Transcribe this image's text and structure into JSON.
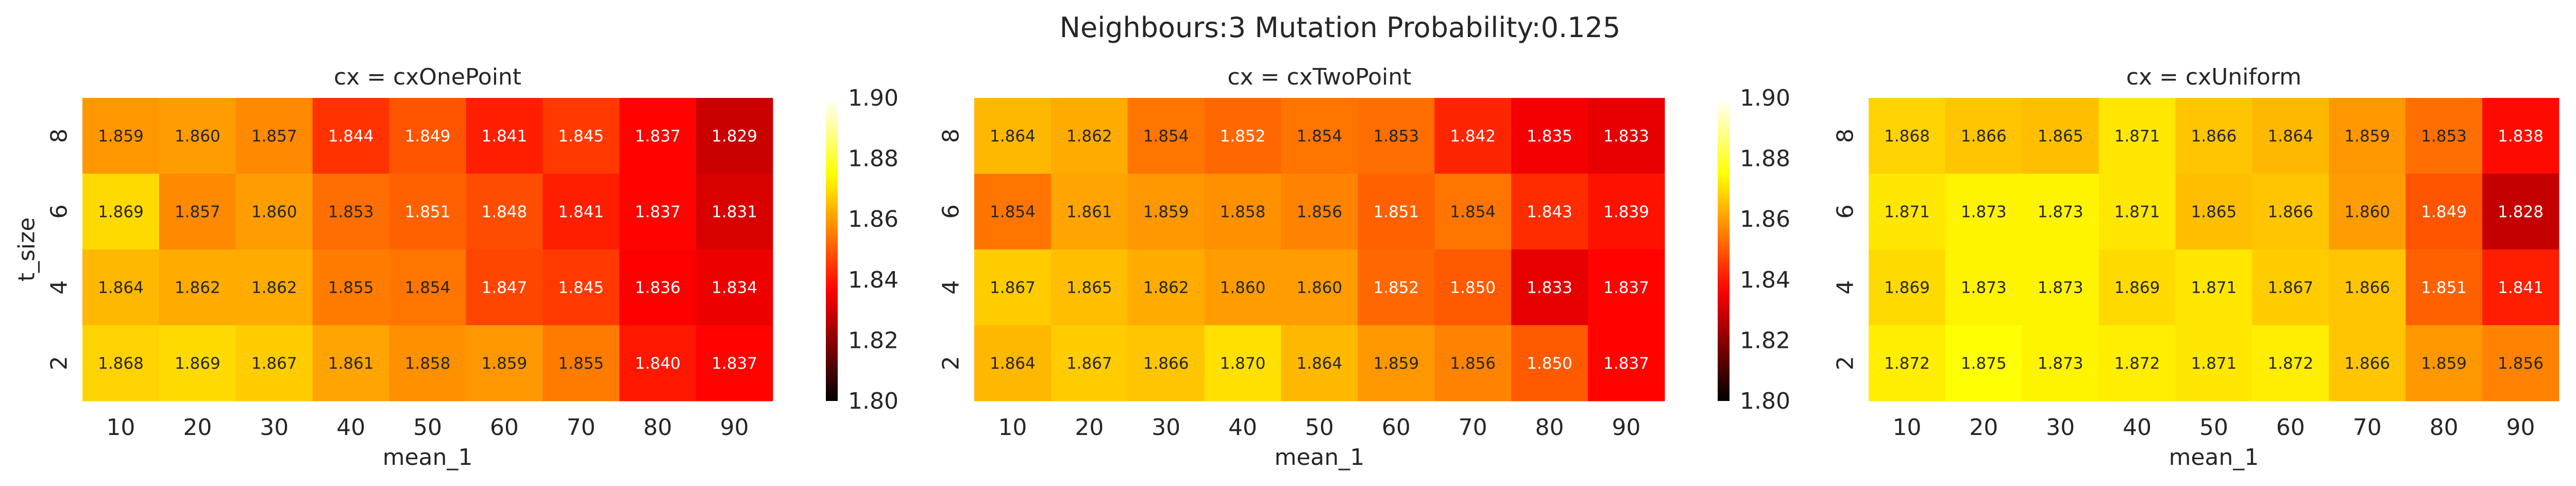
{
  "suptitle": "Neighbours:3 Mutation Probability:0.125",
  "colormap": {
    "name": "hot",
    "stops": [
      "#000000",
      "#ff0000",
      "#ffff00",
      "#ffffff"
    ],
    "vmin": 1.8,
    "vmax": 1.9,
    "ticks": [
      "1.80",
      "1.82",
      "1.84",
      "1.86",
      "1.88",
      "1.90"
    ]
  },
  "chart_data": [
    {
      "type": "heatmap",
      "title": "cx = cxOnePoint",
      "xlabel": "mean_1",
      "ylabel": "t_size",
      "x": [
        "10",
        "20",
        "30",
        "40",
        "50",
        "60",
        "70",
        "80",
        "90"
      ],
      "y": [
        "8",
        "6",
        "4",
        "2"
      ],
      "values": [
        [
          1.859,
          1.86,
          1.857,
          1.844,
          1.849,
          1.841,
          1.845,
          1.837,
          1.829
        ],
        [
          1.869,
          1.857,
          1.86,
          1.853,
          1.851,
          1.848,
          1.841,
          1.837,
          1.831
        ],
        [
          1.864,
          1.862,
          1.862,
          1.855,
          1.854,
          1.847,
          1.845,
          1.836,
          1.834
        ],
        [
          1.868,
          1.869,
          1.867,
          1.861,
          1.858,
          1.859,
          1.855,
          1.84,
          1.837
        ]
      ]
    },
    {
      "type": "heatmap",
      "title": "cx = cxTwoPoint",
      "xlabel": "mean_1",
      "ylabel": "",
      "x": [
        "10",
        "20",
        "30",
        "40",
        "50",
        "60",
        "70",
        "80",
        "90"
      ],
      "y": [
        "8",
        "6",
        "4",
        "2"
      ],
      "values": [
        [
          1.864,
          1.862,
          1.854,
          1.852,
          1.854,
          1.853,
          1.842,
          1.835,
          1.833
        ],
        [
          1.854,
          1.861,
          1.859,
          1.858,
          1.856,
          1.851,
          1.854,
          1.843,
          1.839
        ],
        [
          1.867,
          1.865,
          1.862,
          1.86,
          1.86,
          1.852,
          1.85,
          1.833,
          1.837
        ],
        [
          1.864,
          1.867,
          1.866,
          1.87,
          1.864,
          1.859,
          1.856,
          1.85,
          1.837
        ]
      ]
    },
    {
      "type": "heatmap",
      "title": "cx = cxUniform",
      "xlabel": "mean_1",
      "ylabel": "",
      "x": [
        "10",
        "20",
        "30",
        "40",
        "50",
        "60",
        "70",
        "80",
        "90"
      ],
      "y": [
        "8",
        "6",
        "4",
        "2"
      ],
      "values": [
        [
          1.868,
          1.866,
          1.865,
          1.871,
          1.866,
          1.864,
          1.859,
          1.853,
          1.838
        ],
        [
          1.871,
          1.873,
          1.873,
          1.871,
          1.865,
          1.866,
          1.86,
          1.849,
          1.828
        ],
        [
          1.869,
          1.873,
          1.873,
          1.869,
          1.871,
          1.867,
          1.866,
          1.851,
          1.841
        ],
        [
          1.872,
          1.875,
          1.873,
          1.872,
          1.871,
          1.872,
          1.866,
          1.859,
          1.856
        ]
      ]
    }
  ]
}
